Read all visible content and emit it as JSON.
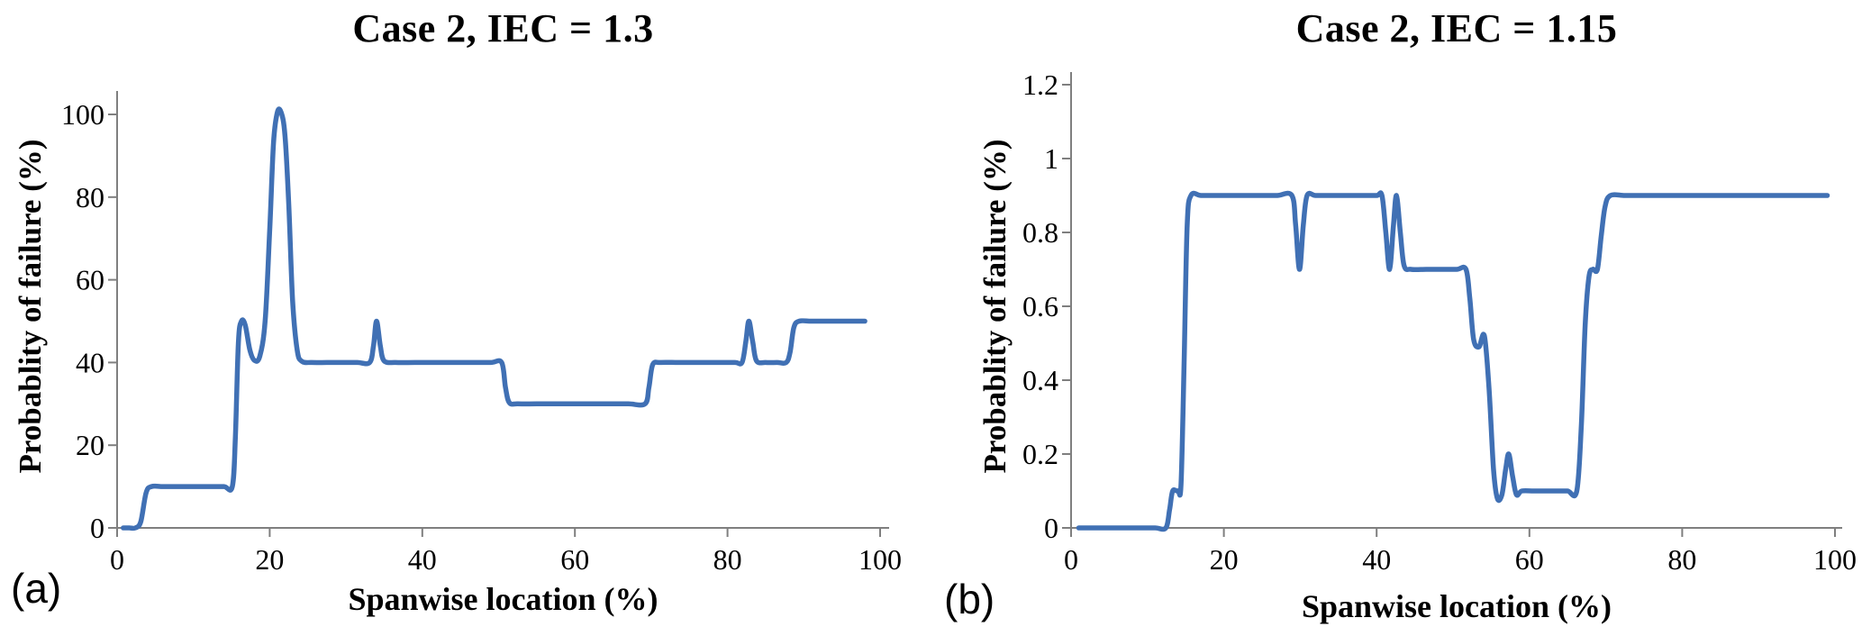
{
  "figure": {
    "background": "#ffffff",
    "line_color": "#4070b4",
    "axis_color": "#7f7f7f",
    "text_color": "#000000"
  },
  "chart_data": [
    {
      "type": "line",
      "panel_label": "(a)",
      "title": "Case 2, IEC = 1.3",
      "xlabel": "Spanwise location (%)",
      "ylabel": "Probablity of failure (%)",
      "legend": "none",
      "grid": false,
      "xlim": [
        0,
        100
      ],
      "ylim": [
        0,
        100
      ],
      "x_ticks": [
        0,
        20,
        40,
        60,
        80,
        100
      ],
      "x_tick_labels": [
        "0",
        "20",
        "40",
        "60",
        "80",
        "100"
      ],
      "y_ticks": [
        0,
        20,
        40,
        60,
        80,
        100
      ],
      "y_tick_labels": [
        "0",
        "20",
        "40",
        "60",
        "80",
        "100"
      ],
      "series": [
        [
          0.8,
          0
        ],
        [
          1.6,
          0
        ],
        [
          2.4,
          0
        ],
        [
          3.1,
          1.5
        ],
        [
          3.8,
          8.5
        ],
        [
          4.5,
          10
        ],
        [
          6,
          10
        ],
        [
          8,
          10
        ],
        [
          10,
          10
        ],
        [
          12,
          10
        ],
        [
          14,
          10
        ],
        [
          15.1,
          10
        ],
        [
          15.5,
          22
        ],
        [
          15.9,
          45
        ],
        [
          16.3,
          50
        ],
        [
          16.8,
          49
        ],
        [
          17.4,
          43
        ],
        [
          18,
          40.5
        ],
        [
          18.7,
          41.5
        ],
        [
          19.4,
          50
        ],
        [
          20,
          72
        ],
        [
          20.5,
          93
        ],
        [
          21,
          100.5
        ],
        [
          21.5,
          100.5
        ],
        [
          22,
          95
        ],
        [
          22.5,
          78
        ],
        [
          23,
          55
        ],
        [
          23.6,
          43
        ],
        [
          24.2,
          40.3
        ],
        [
          25.5,
          40
        ],
        [
          27.5,
          40
        ],
        [
          29.5,
          40
        ],
        [
          31.5,
          40
        ],
        [
          33.1,
          40
        ],
        [
          33.6,
          44
        ],
        [
          34,
          50
        ],
        [
          34.5,
          44
        ],
        [
          35,
          40.4
        ],
        [
          36.5,
          40
        ],
        [
          39,
          40
        ],
        [
          41.5,
          40
        ],
        [
          44,
          40
        ],
        [
          46.5,
          40
        ],
        [
          49,
          40
        ],
        [
          50.4,
          40
        ],
        [
          50.9,
          34
        ],
        [
          51.4,
          30.3
        ],
        [
          52.5,
          30
        ],
        [
          55,
          30
        ],
        [
          58,
          30
        ],
        [
          61,
          30
        ],
        [
          64,
          30
        ],
        [
          67,
          30
        ],
        [
          69.2,
          30
        ],
        [
          69.7,
          34
        ],
        [
          70.2,
          39.5
        ],
        [
          71.2,
          40
        ],
        [
          73.5,
          40
        ],
        [
          76,
          40
        ],
        [
          78.5,
          40
        ],
        [
          81,
          40
        ],
        [
          81.9,
          40
        ],
        [
          82.4,
          45
        ],
        [
          82.8,
          50
        ],
        [
          83.3,
          45
        ],
        [
          83.8,
          40.4
        ],
        [
          85,
          40
        ],
        [
          86.5,
          40
        ],
        [
          87.7,
          40
        ],
        [
          88.2,
          42.5
        ],
        [
          88.7,
          48.5
        ],
        [
          89.4,
          50
        ],
        [
          91,
          50
        ],
        [
          93.5,
          50
        ],
        [
          96,
          50
        ],
        [
          98,
          50
        ]
      ]
    },
    {
      "type": "line",
      "panel_label": "(b)",
      "title": "Case 2, IEC = 1.15",
      "xlabel": "Spanwise location (%)",
      "ylabel": "Probablity of failure (%)",
      "legend": "none",
      "grid": false,
      "xlim": [
        0,
        100
      ],
      "ylim": [
        0,
        1.2
      ],
      "x_ticks": [
        0,
        20,
        40,
        60,
        80,
        100
      ],
      "x_tick_labels": [
        "0",
        "20",
        "40",
        "60",
        "80",
        "100"
      ],
      "y_ticks": [
        0,
        0.2,
        0.4,
        0.6,
        0.8,
        1,
        1.2
      ],
      "y_tick_labels": [
        "0",
        "0.2",
        "0.4",
        "0.6",
        "0.8",
        "1",
        "1.2"
      ],
      "series": [
        [
          1,
          0
        ],
        [
          3,
          0
        ],
        [
          5,
          0
        ],
        [
          7,
          0
        ],
        [
          9,
          0
        ],
        [
          11,
          0
        ],
        [
          12.4,
          0
        ],
        [
          12.9,
          0.05
        ],
        [
          13.3,
          0.1
        ],
        [
          14,
          0.1
        ],
        [
          14.4,
          0.12
        ],
        [
          14.8,
          0.45
        ],
        [
          15.2,
          0.82
        ],
        [
          15.7,
          0.9
        ],
        [
          17,
          0.9
        ],
        [
          19,
          0.9
        ],
        [
          21,
          0.9
        ],
        [
          23,
          0.9
        ],
        [
          25,
          0.9
        ],
        [
          27,
          0.9
        ],
        [
          28.9,
          0.9
        ],
        [
          29.4,
          0.82
        ],
        [
          29.9,
          0.7
        ],
        [
          30.4,
          0.82
        ],
        [
          30.9,
          0.9
        ],
        [
          32,
          0.9
        ],
        [
          34,
          0.9
        ],
        [
          36,
          0.9
        ],
        [
          38,
          0.9
        ],
        [
          40,
          0.9
        ],
        [
          40.7,
          0.9
        ],
        [
          41.2,
          0.8
        ],
        [
          41.7,
          0.7
        ],
        [
          42.2,
          0.82
        ],
        [
          42.6,
          0.9
        ],
        [
          43.1,
          0.8
        ],
        [
          43.6,
          0.71
        ],
        [
          44.5,
          0.7
        ],
        [
          46.5,
          0.7
        ],
        [
          48.5,
          0.7
        ],
        [
          50.5,
          0.7
        ],
        [
          51.7,
          0.7
        ],
        [
          52.2,
          0.62
        ],
        [
          52.7,
          0.51
        ],
        [
          53.4,
          0.49
        ],
        [
          54.1,
          0.52
        ],
        [
          54.7,
          0.38
        ],
        [
          55.3,
          0.16
        ],
        [
          55.8,
          0.08
        ],
        [
          56.4,
          0.09
        ],
        [
          56.9,
          0.16
        ],
        [
          57.3,
          0.2
        ],
        [
          57.8,
          0.14
        ],
        [
          58.3,
          0.09
        ],
        [
          59,
          0.1
        ],
        [
          60.5,
          0.1
        ],
        [
          62,
          0.1
        ],
        [
          63.5,
          0.1
        ],
        [
          65,
          0.1
        ],
        [
          66.2,
          0.1
        ],
        [
          66.8,
          0.28
        ],
        [
          67.3,
          0.55
        ],
        [
          67.8,
          0.68
        ],
        [
          68.3,
          0.7
        ],
        [
          68.9,
          0.7
        ],
        [
          69.4,
          0.79
        ],
        [
          69.9,
          0.87
        ],
        [
          70.6,
          0.9
        ],
        [
          72.5,
          0.9
        ],
        [
          75,
          0.9
        ],
        [
          78,
          0.9
        ],
        [
          81,
          0.9
        ],
        [
          84,
          0.9
        ],
        [
          87,
          0.9
        ],
        [
          90,
          0.9
        ],
        [
          93,
          0.9
        ],
        [
          96,
          0.9
        ],
        [
          99,
          0.9
        ]
      ]
    }
  ]
}
